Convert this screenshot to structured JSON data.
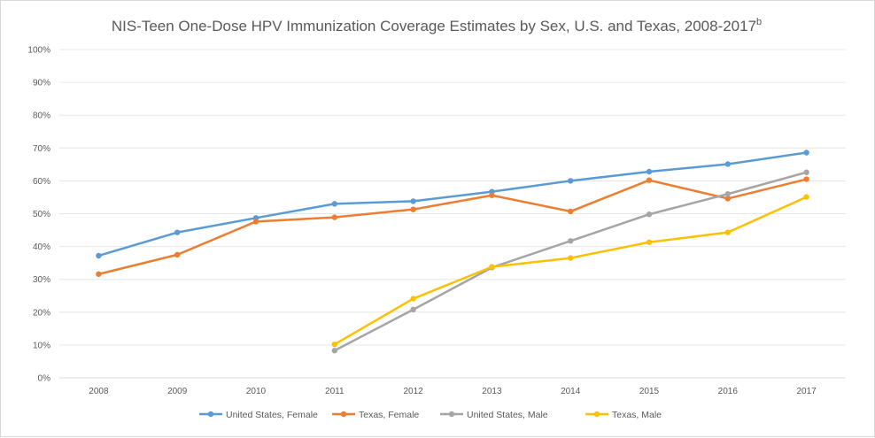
{
  "chart_data": {
    "type": "line",
    "title": "NIS-Teen One-Dose HPV Immunization Coverage Estimates by Sex, U.S. and Texas, 2008-2017",
    "title_superscript": "b",
    "categories": [
      "2008",
      "2009",
      "2010",
      "2011",
      "2012",
      "2013",
      "2014",
      "2015",
      "2016",
      "2017"
    ],
    "ylim": [
      0,
      100
    ],
    "y_ticks": [
      "0%",
      "10%",
      "20%",
      "30%",
      "40%",
      "50%",
      "60%",
      "70%",
      "80%",
      "90%",
      "100%"
    ],
    "grid": true,
    "legend_position": "bottom",
    "series": [
      {
        "name": "United States, Female",
        "color": "#5b9bd5",
        "values": [
          37.2,
          44.3,
          48.7,
          53.0,
          53.8,
          56.7,
          60.0,
          62.8,
          65.1,
          68.6
        ]
      },
      {
        "name": "Texas, Female",
        "color": "#ed7d31",
        "values": [
          31.6,
          37.5,
          47.6,
          48.9,
          51.3,
          55.6,
          50.7,
          60.2,
          54.6,
          60.5
        ]
      },
      {
        "name": "United States, Male",
        "color": "#a5a5a5",
        "values": [
          null,
          null,
          null,
          8.3,
          20.8,
          33.6,
          41.7,
          49.8,
          56.0,
          62.6
        ]
      },
      {
        "name": "Texas, Male",
        "color": "#ffc000",
        "values": [
          null,
          null,
          null,
          10.2,
          24.1,
          33.8,
          36.5,
          41.3,
          44.3,
          55.1
        ]
      }
    ]
  }
}
